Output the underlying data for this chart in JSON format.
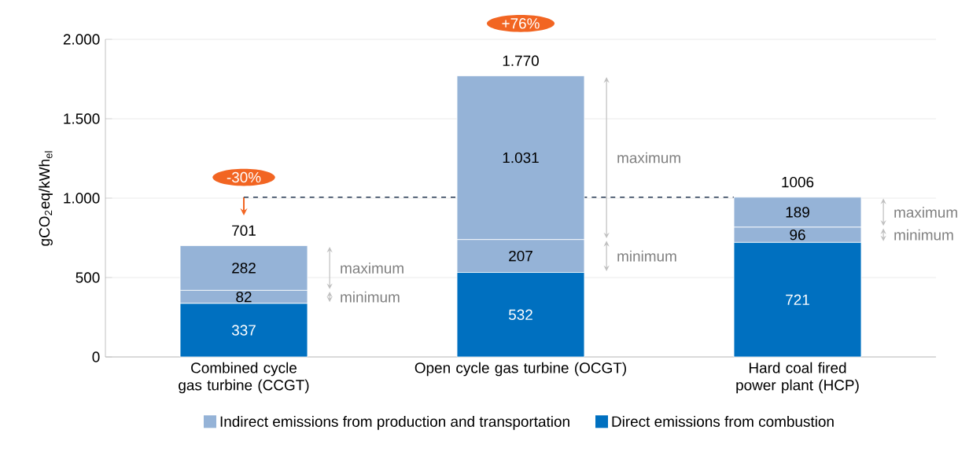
{
  "chart_data": {
    "type": "bar",
    "stacked": true,
    "ylabel": "gCO$_{2}$eq/kWh$_{el}$",
    "categories": [
      "Combined cycle gas turbine (CCGT)",
      "Open cycle gas turbine (OCGT)",
      "Hard coal fired power plant (HCP)"
    ],
    "series": [
      {
        "name": "Direct emissions from combustion",
        "color": "#0070c0",
        "values": [
          337,
          532,
          721
        ],
        "value_labels": [
          "337",
          "532",
          "721"
        ]
      },
      {
        "name": "Indirect emissions from production and transportation",
        "color": "#95b3d7",
        "values": [
          82,
          207,
          96
        ],
        "value_labels": [
          "82",
          "207",
          "96"
        ]
      },
      {
        "color": "#95b3d7",
        "values": [
          282,
          1031,
          189
        ],
        "value_labels": [
          "282",
          "1.031",
          "189"
        ]
      }
    ],
    "totals": [
      "701",
      "1.770",
      "1006"
    ],
    "ylim": [
      0,
      2000
    ],
    "yticks": [
      0,
      500,
      {
        "value": 1000,
        "label": "1.000"
      },
      {
        "value": 1500,
        "label": "1.500"
      },
      {
        "value": 2000,
        "label": "2.000"
      }
    ],
    "grid": "y",
    "legend": "bottom",
    "ref_lines": [
      {
        "axis": "y",
        "value": 1006,
        "color": "#44546a",
        "line_style": "dashed"
      }
    ],
    "annotations": [
      "-30%",
      "+76%",
      "maximum",
      "minimum",
      "maximum",
      "minimum",
      "maximum",
      "minimum"
    ]
  }
}
